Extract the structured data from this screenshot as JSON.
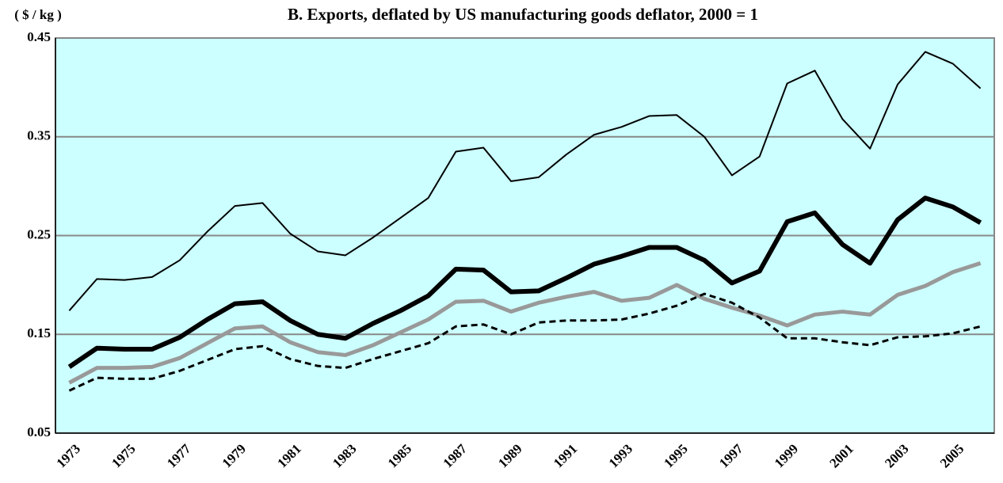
{
  "chart_data": {
    "type": "line",
    "title": "B. Exports, deflated by US manufacturing goods deflator, 2000 = 1",
    "y_label": "( $ / kg )",
    "categories": [
      "1973",
      null,
      "1975",
      null,
      "1977",
      null,
      "1979",
      null,
      "1981",
      null,
      "1983",
      null,
      "1985",
      null,
      "1987",
      null,
      "1989",
      null,
      "1991",
      null,
      "1993",
      null,
      "1995",
      null,
      "1997",
      null,
      "1999",
      null,
      "2001",
      null,
      "2003",
      null,
      "2005",
      null
    ],
    "series": [
      {
        "color": "#000000",
        "line_width": 2,
        "dashed": false,
        "values": [
          0.174,
          0.206,
          0.205,
          0.208,
          0.225,
          0.254,
          0.28,
          0.283,
          0.252,
          0.234,
          0.23,
          0.248,
          0.268,
          0.288,
          0.335,
          0.339,
          0.305,
          0.309,
          0.332,
          0.352,
          0.36,
          0.371,
          0.372,
          0.35,
          0.311,
          0.33,
          0.404,
          0.417,
          0.368,
          0.338,
          0.403,
          0.436,
          0.424,
          0.399
        ]
      },
      {
        "color": "#000000",
        "line_width": 6,
        "dashed": false,
        "values": [
          0.117,
          0.136,
          0.135,
          0.135,
          0.147,
          0.165,
          0.181,
          0.183,
          0.164,
          0.15,
          0.146,
          0.161,
          0.174,
          0.189,
          0.216,
          0.215,
          0.193,
          0.194,
          0.207,
          0.221,
          0.229,
          0.238,
          0.238,
          0.225,
          0.202,
          0.214,
          0.264,
          0.273,
          0.241,
          0.222,
          0.266,
          0.288,
          0.279,
          0.263
        ]
      },
      {
        "color": "#999999",
        "line_width": 5,
        "dashed": false,
        "values": [
          0.101,
          0.116,
          0.116,
          0.117,
          0.126,
          0.141,
          0.156,
          0.158,
          0.142,
          0.132,
          0.129,
          0.139,
          0.152,
          0.165,
          0.183,
          0.184,
          0.173,
          0.182,
          0.188,
          0.193,
          0.184,
          0.187,
          0.2,
          0.186,
          0.177,
          0.169,
          0.159,
          0.17,
          0.173,
          0.17,
          0.19,
          0.199,
          0.213,
          0.222
        ]
      },
      {
        "color": "#000000",
        "line_width": 3,
        "dashed": true,
        "values": [
          0.093,
          0.106,
          0.105,
          0.105,
          0.113,
          0.124,
          0.135,
          0.138,
          0.125,
          0.118,
          0.116,
          0.125,
          0.133,
          0.141,
          0.158,
          0.16,
          0.15,
          0.162,
          0.164,
          0.164,
          0.165,
          0.171,
          0.179,
          0.191,
          0.182,
          0.167,
          0.146,
          0.146,
          0.142,
          0.139,
          0.147,
          0.148,
          0.151,
          0.158
        ]
      }
    ],
    "ylim": [
      0.05,
      0.45
    ],
    "yticks": [
      0.05,
      0.15,
      0.25,
      0.35,
      0.45
    ],
    "grid": true,
    "background": "#ccffff"
  }
}
